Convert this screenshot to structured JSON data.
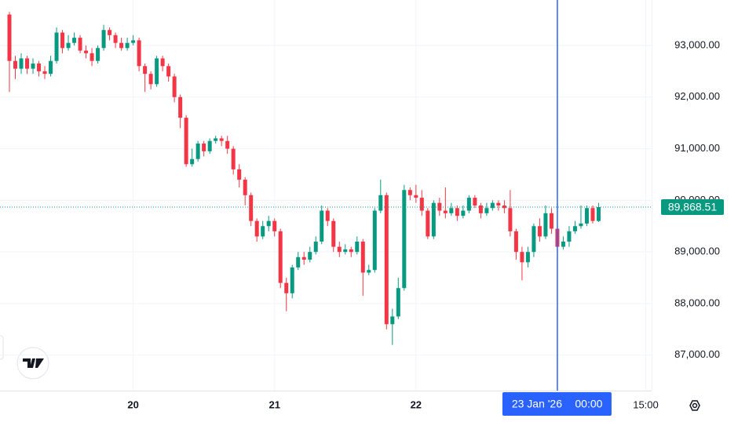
{
  "chart_data": {
    "type": "candlestick",
    "x": [
      0,
      1,
      2,
      3,
      4,
      5,
      6,
      7,
      8,
      9,
      10,
      11,
      12,
      13,
      14,
      15,
      16,
      17,
      18,
      19,
      20,
      21,
      22,
      23,
      24,
      25,
      26,
      27,
      28,
      29,
      30,
      31,
      32,
      33,
      34,
      35,
      36,
      37,
      38,
      39,
      40,
      41,
      42,
      43,
      44,
      45,
      46,
      47,
      48,
      49,
      50,
      51,
      52,
      53,
      54,
      55,
      56,
      57,
      58,
      59,
      60,
      61,
      62,
      63,
      64,
      65,
      66,
      67,
      68,
      69,
      70,
      71,
      72,
      73,
      74,
      75,
      76,
      77,
      78,
      79,
      80,
      81,
      82,
      83,
      84,
      85,
      86,
      87,
      88,
      89,
      90,
      91,
      92,
      93,
      94,
      95,
      96,
      97,
      98,
      99,
      100
    ],
    "open": [
      93600,
      92700,
      92550,
      92750,
      92550,
      92650,
      92500,
      92450,
      92700,
      93250,
      92950,
      93050,
      93150,
      92900,
      92850,
      92700,
      92950,
      93300,
      93200,
      93050,
      92950,
      93050,
      93100,
      92600,
      92450,
      92250,
      92750,
      92600,
      92400,
      92000,
      91600,
      90700,
      90800,
      91100,
      90950,
      91150,
      91200,
      91150,
      91000,
      90600,
      90400,
      90100,
      89600,
      89300,
      89500,
      89600,
      89400,
      88400,
      88200,
      88700,
      88900,
      88850,
      89000,
      89200,
      89800,
      89600,
      89100,
      89000,
      89050,
      89000,
      89200,
      88600,
      88650,
      89800,
      90100,
      87600,
      87750,
      88300,
      90200,
      90100,
      90050,
      89800,
      89300,
      89950,
      89800,
      89750,
      89850,
      89700,
      89800,
      90050,
      89900,
      89750,
      89850,
      89950,
      89900,
      89850,
      89400,
      89000,
      88800,
      89000,
      89500,
      89300,
      89750,
      89450,
      89100,
      89200,
      89400,
      89500,
      89550,
      89850,
      89600
    ],
    "high": [
      93650,
      92800,
      92850,
      92800,
      92750,
      92700,
      92600,
      92800,
      93350,
      93300,
      93200,
      93250,
      93200,
      93000,
      92950,
      93000,
      93400,
      93350,
      93250,
      93150,
      93150,
      93200,
      93150,
      92650,
      92500,
      92800,
      92800,
      92650,
      92450,
      92050,
      91650,
      91000,
      91150,
      91150,
      91200,
      91250,
      91250,
      91250,
      91050,
      90700,
      90450,
      90150,
      89650,
      89600,
      89700,
      89650,
      89450,
      88500,
      88750,
      89000,
      89000,
      89100,
      89300,
      89900,
      89850,
      89650,
      89200,
      89150,
      89100,
      89300,
      89250,
      88750,
      89850,
      90400,
      90150,
      87900,
      88500,
      90300,
      90250,
      90300,
      90200,
      89850,
      90000,
      90050,
      90250,
      89950,
      89900,
      89900,
      90100,
      90100,
      89950,
      89950,
      90000,
      90000,
      90000,
      90200,
      89450,
      89100,
      89100,
      89550,
      89650,
      89900,
      89850,
      89500,
      89300,
      89500,
      89600,
      89900,
      89900,
      89900,
      89950
    ],
    "low": [
      92100,
      92350,
      92450,
      92450,
      92450,
      92400,
      92350,
      92400,
      92650,
      92850,
      92900,
      93000,
      92850,
      92750,
      92600,
      92650,
      92900,
      93100,
      92950,
      92900,
      92900,
      93000,
      92500,
      92100,
      92150,
      92200,
      92500,
      92300,
      91900,
      91400,
      90650,
      90650,
      90750,
      90850,
      90900,
      91100,
      91050,
      90900,
      90500,
      90250,
      89900,
      89500,
      89200,
      89250,
      89400,
      89300,
      88300,
      87850,
      88100,
      88650,
      88750,
      88800,
      88950,
      89150,
      89500,
      89000,
      88900,
      88950,
      88900,
      88950,
      88150,
      88550,
      88600,
      89750,
      87500,
      87200,
      87700,
      88250,
      90000,
      89950,
      89700,
      89250,
      89250,
      89700,
      89650,
      89700,
      89600,
      89650,
      89750,
      89850,
      89650,
      89700,
      89800,
      89800,
      89750,
      89300,
      88850,
      88450,
      88700,
      88900,
      89200,
      89250,
      89350,
      89000,
      89050,
      89100,
      89350,
      89450,
      89500,
      89550,
      89580
    ],
    "close": [
      92700,
      92550,
      92750,
      92550,
      92650,
      92500,
      92450,
      92700,
      93250,
      92950,
      93050,
      93150,
      92900,
      92850,
      92700,
      92950,
      93300,
      93200,
      93050,
      92950,
      93050,
      93100,
      92600,
      92450,
      92250,
      92750,
      92600,
      92400,
      92000,
      91600,
      90700,
      90800,
      91100,
      90950,
      91150,
      91200,
      91150,
      91000,
      90600,
      90400,
      90100,
      89600,
      89300,
      89500,
      89600,
      89400,
      88400,
      88200,
      88700,
      88900,
      88850,
      89000,
      89200,
      89800,
      89600,
      89100,
      89000,
      89050,
      89000,
      89200,
      88600,
      88650,
      89800,
      90100,
      87600,
      87750,
      88300,
      90200,
      90100,
      90050,
      89800,
      89300,
      89950,
      89800,
      89750,
      89850,
      89700,
      89800,
      90050,
      89900,
      89750,
      89850,
      89950,
      89900,
      89850,
      89400,
      89000,
      88800,
      89000,
      89500,
      89300,
      89750,
      89450,
      89100,
      89200,
      89400,
      89500,
      89550,
      89850,
      89600,
      89868.51
    ],
    "up_color": "#089981",
    "down_color": "#f23645",
    "xlim": [
      -1.6,
      109
    ],
    "xticks": [
      {
        "value": 21,
        "label": "20"
      },
      {
        "value": 45,
        "label": "21"
      },
      {
        "value": 69,
        "label": "22"
      },
      {
        "value": 108,
        "label": "15:00"
      }
    ],
    "ylim": [
      86313,
      93881
    ],
    "yticks": [
      {
        "value": 87000,
        "label": "87,000.00"
      },
      {
        "value": 88000,
        "label": "88,000.00"
      },
      {
        "value": 89000,
        "label": "89,000.00"
      },
      {
        "value": 90000,
        "label": "90,000.00"
      },
      {
        "value": 91000,
        "label": "91,000.00"
      },
      {
        "value": 92000,
        "label": "92,000.00"
      },
      {
        "value": 93000,
        "label": "93,000.00"
      }
    ],
    "grid": true,
    "price_line": {
      "value": 89868.51,
      "label": "89,868.51"
    },
    "crosshair": {
      "x": 93,
      "date": "23 Jan '26",
      "time": "00:00"
    }
  }
}
